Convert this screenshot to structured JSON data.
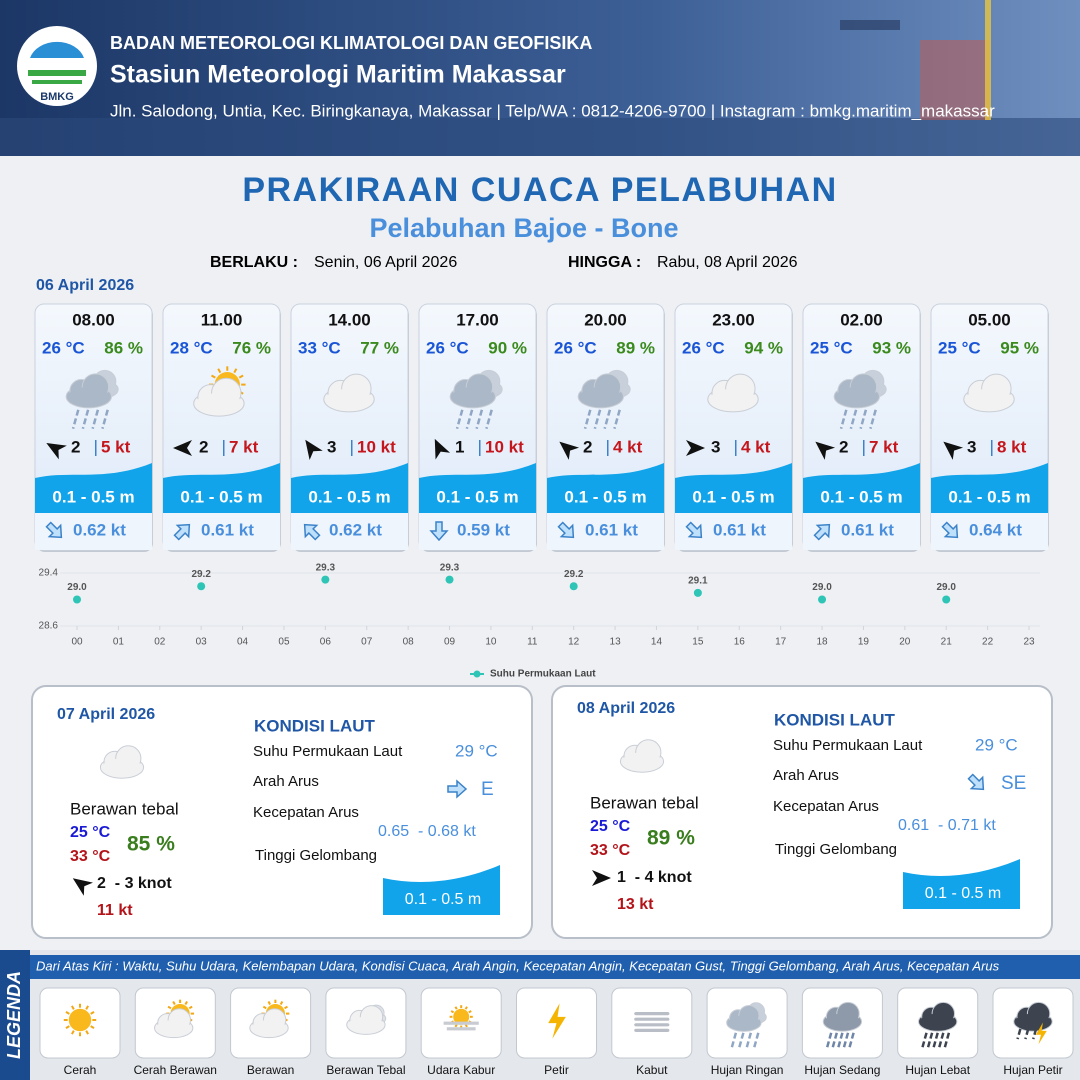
{
  "header": {
    "logo": "BMKG",
    "agency": "BADAN METEOROLOGI KLIMATOLOGI DAN GEOFISIKA",
    "station": "Stasiun Meteorologi Maritim Makassar",
    "address": "Jln. Salodong, Untia, Kec. Biringkanaya, Makassar | Telp/WA : 0812-4206-9700 | Instagram : bmkg.maritim_makassar"
  },
  "title": "PRAKIRAAN CUACA PELABUHAN",
  "subtitle": "Pelabuhan Bajoe - Bone",
  "validity": {
    "from_label": "BERLAKU :",
    "from": "Senin, 06 April 2026",
    "to_label": "HINGGA :",
    "to": "Rabu, 08 April 2026"
  },
  "day1_date": "06 April 2026",
  "forecasts": [
    {
      "time": "08.00",
      "temp": "26 °C",
      "humidity": "86 %",
      "wind": "2",
      "gust": "5 kt",
      "wave": "0.1 - 0.5 m",
      "current": "0.62 kt"
    },
    {
      "time": "11.00",
      "temp": "28 °C",
      "humidity": "76 %",
      "wind": "2",
      "gust": "7 kt",
      "wave": "0.1 - 0.5 m",
      "current": "0.61 kt"
    },
    {
      "time": "14.00",
      "temp": "33 °C",
      "humidity": "77 %",
      "wind": "3",
      "gust": "10 kt",
      "wave": "0.1 - 0.5 m",
      "current": "0.62 kt"
    },
    {
      "time": "17.00",
      "temp": "26 °C",
      "humidity": "90 %",
      "wind": "1",
      "gust": "10 kt",
      "wave": "0.1 - 0.5 m",
      "current": "0.59 kt"
    },
    {
      "time": "20.00",
      "temp": "26 °C",
      "humidity": "89 %",
      "wind": "2",
      "gust": "4 kt",
      "wave": "0.1 - 0.5 m",
      "current": "0.61 kt"
    },
    {
      "time": "23.00",
      "temp": "26 °C",
      "humidity": "94 %",
      "wind": "3",
      "gust": "4 kt",
      "wave": "0.1 - 0.5 m",
      "current": "0.61 kt"
    },
    {
      "time": "02.00",
      "temp": "25 °C",
      "humidity": "93 %",
      "wind": "2",
      "gust": "7 kt",
      "wave": "0.1 - 0.5 m",
      "current": "0.61 kt"
    },
    {
      "time": "05.00",
      "temp": "25 °C",
      "humidity": "95 %",
      "wind": "3",
      "gust": "8 kt",
      "wave": "0.1 - 0.5 m",
      "current": "0.64 kt"
    }
  ],
  "chart_data": {
    "type": "scatter",
    "x": [
      0,
      3,
      6,
      9,
      12,
      15,
      18,
      21
    ],
    "series": [
      {
        "name": "Suhu Permukaan Laut",
        "color": "#2ec4b6",
        "values": [
          29.0,
          29.2,
          29.3,
          29.3,
          29.2,
          29.1,
          29.0,
          29.0
        ],
        "value_labels": [
          "29.0",
          "29.2",
          "29.3",
          "29.3",
          "29.2",
          "29.1",
          "29.0",
          "29.0"
        ]
      }
    ],
    "xlim": [
      0,
      23
    ],
    "xticks": [
      {
        "value": 0,
        "label": "00"
      },
      {
        "value": 1,
        "label": "01"
      },
      {
        "value": 2,
        "label": "02"
      },
      {
        "value": 3,
        "label": "03"
      },
      {
        "value": 4,
        "label": "04"
      },
      {
        "value": 5,
        "label": "05"
      },
      {
        "value": 6,
        "label": "06"
      },
      {
        "value": 7,
        "label": "07"
      },
      {
        "value": 8,
        "label": "08"
      },
      {
        "value": 9,
        "label": "09"
      },
      10,
      11,
      12,
      13,
      14,
      15,
      16,
      17,
      18,
      19,
      20,
      21,
      22,
      23
    ],
    "ylim": [
      28.6,
      29.4
    ],
    "yticks": [
      28.6,
      29.4
    ],
    "grid": true,
    "legend": "bottom"
  },
  "days": [
    {
      "date": "07 April 2026",
      "condition": "Berawan tebal",
      "temp_min": "25 °C",
      "temp_max": "33 °C",
      "humidity": "85 %",
      "wind": "2  - 3 knot",
      "gust": "11 kt",
      "sea_title": "KONDISI LAUT",
      "sst_label": "Suhu Permukaan Laut",
      "sst": "29 °C",
      "current_dir_label": "Arah Arus",
      "current_dir": "E",
      "current_speed_label": "Kecepatan Arus",
      "current_speed": "0.65  - 0.68 kt",
      "wave_label": "Tinggi Gelombang",
      "wave": "0.1 - 0.5 m"
    },
    {
      "date": "08 April 2026",
      "condition": "Berawan tebal",
      "temp_min": "25 °C",
      "temp_max": "33 °C",
      "humidity": "89 %",
      "wind": "1  - 4 knot",
      "gust": "13 kt",
      "sea_title": "KONDISI LAUT",
      "sst_label": "Suhu Permukaan Laut",
      "sst": "29 °C",
      "current_dir_label": "Arah Arus",
      "current_dir": "SE",
      "current_speed_label": "Kecepatan Arus",
      "current_speed": "0.61  - 0.71 kt",
      "wave_label": "Tinggi Gelombang",
      "wave": "0.1 - 0.5 m"
    }
  ],
  "legend": {
    "title": "LEGENDA",
    "description": "Dari Atas Kiri : Waktu, Suhu Udara, Kelembapan Udara, Kondisi Cuaca, Arah Angin, Kecepatan Angin, Kecepatan Gust, Tinggi Gelombang, Arah Arus, Kecepatan Arus",
    "items": [
      "Cerah",
      "Cerah Berawan",
      "Berawan",
      "Berawan Tebal",
      "Udara Kabur",
      "Petir",
      "Kabut",
      "Hujan Ringan",
      "Hujan Sedang",
      "Hujan Lebat",
      "Hujan Petir"
    ]
  }
}
